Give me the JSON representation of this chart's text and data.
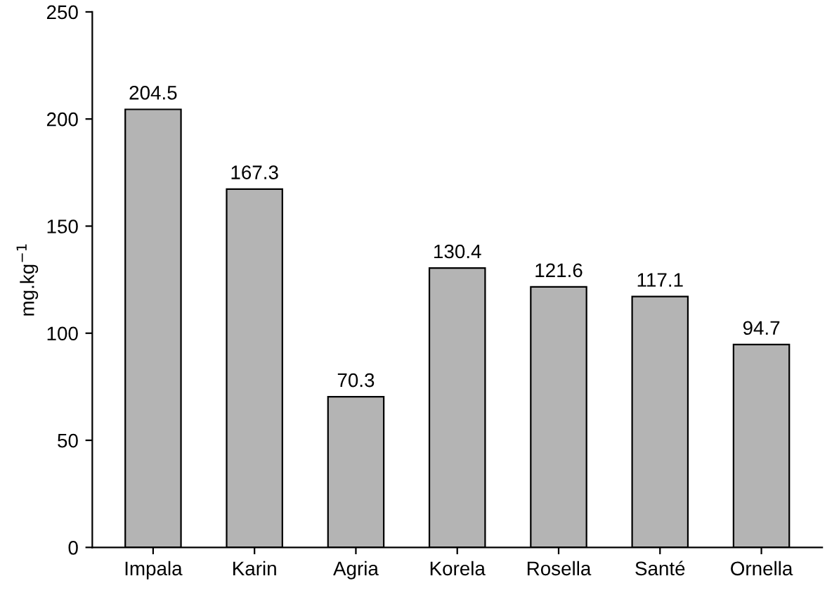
{
  "chart_data": {
    "type": "bar",
    "ylabel": "mg.kg$^{−1}$",
    "categories": [
      "Impala",
      "Karin",
      "Agria",
      "Korela",
      "Rosella",
      "Santé",
      "Ornella"
    ],
    "values": [
      204.5,
      167.3,
      70.3,
      130.4,
      121.6,
      117.1,
      94.7
    ],
    "color": "#b4b4b4",
    "ylim": [
      0,
      250
    ],
    "yticks": [
      0,
      50,
      100,
      150,
      200,
      250
    ],
    "grid": false,
    "data_labels": true
  }
}
